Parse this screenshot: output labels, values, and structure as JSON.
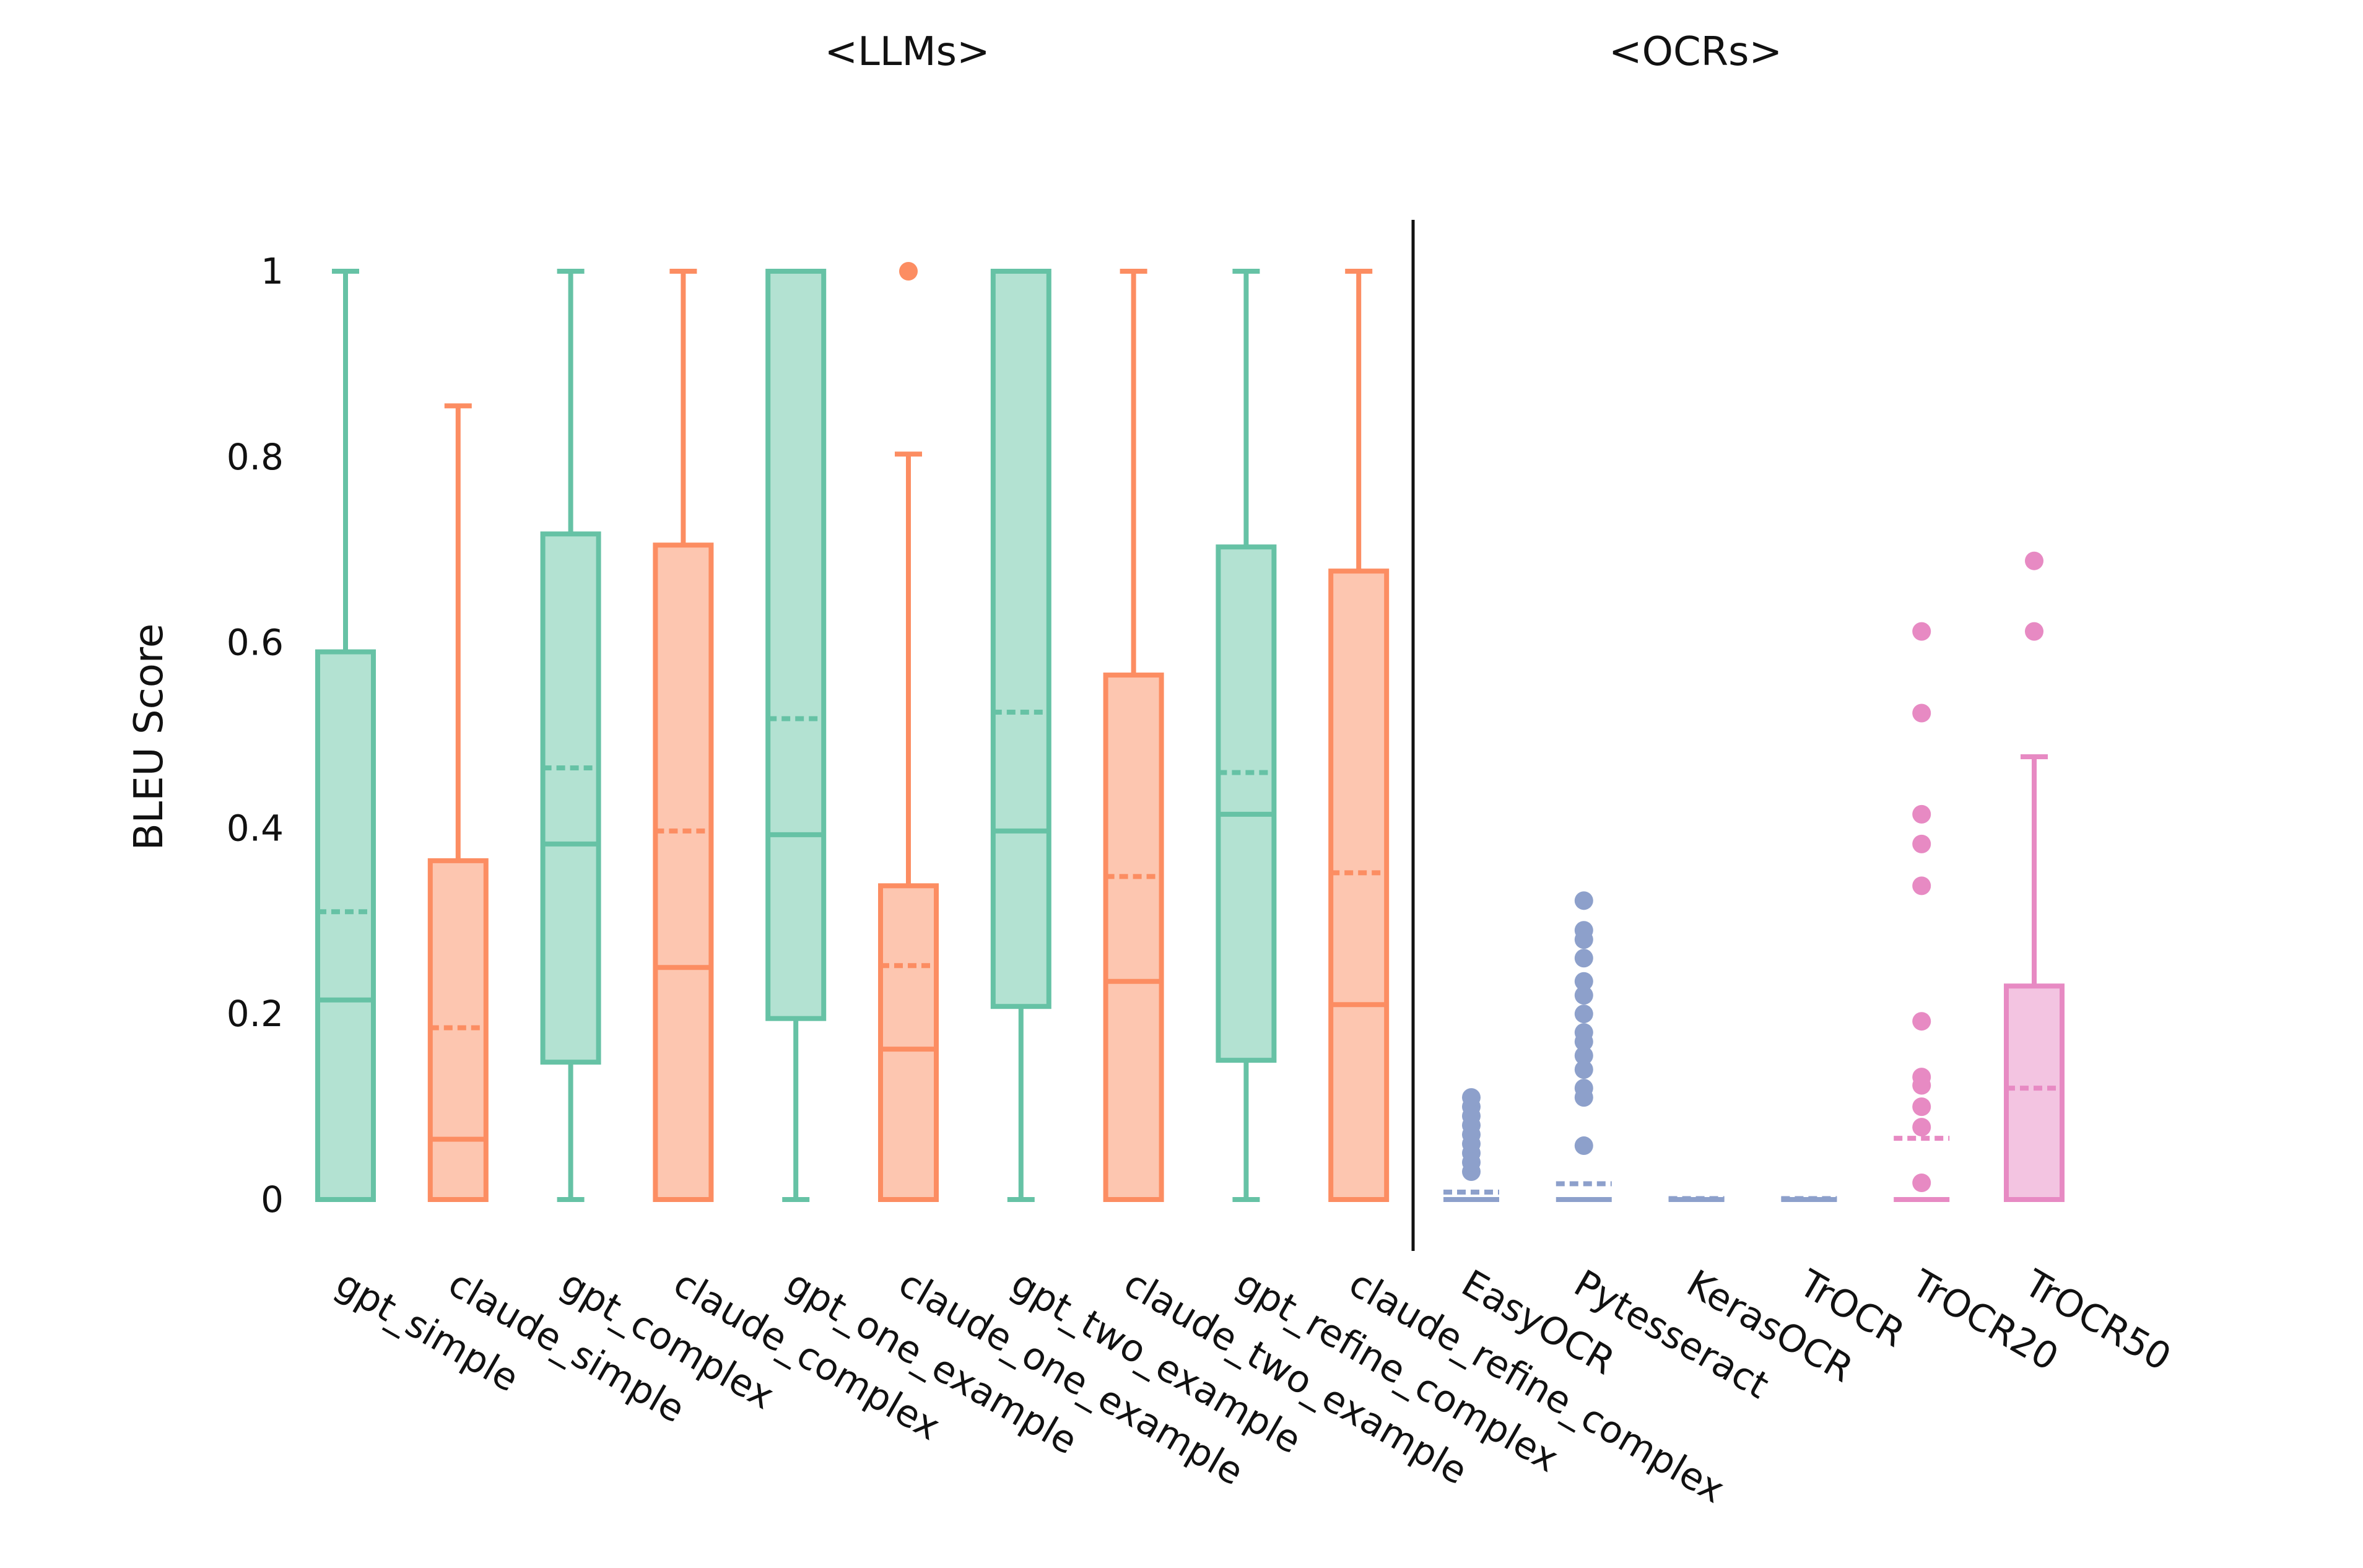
{
  "chart_data": {
    "type": "box",
    "ylabel": "BLEU Score",
    "ylim": [
      0,
      1
    ],
    "yticks": [
      "0",
      "0.2",
      "0.4",
      "0.6",
      "0.8",
      "1"
    ],
    "group_labels": [
      "<LLMs>",
      "<OCRs>"
    ],
    "colors": {
      "green": "#66c2a5",
      "orange": "#fc8d62",
      "blue": "#8da0cb",
      "pink": "#e78ac3"
    },
    "series": [
      {
        "name": "gpt_simple",
        "color": "green",
        "whislo": 0,
        "q1": 0,
        "median": 0.215,
        "mean": 0.31,
        "q3": 0.59,
        "whishi": 1.0,
        "fliers": []
      },
      {
        "name": "claude_simple",
        "color": "orange",
        "whislo": 0,
        "q1": 0,
        "median": 0.065,
        "mean": 0.185,
        "q3": 0.365,
        "whishi": 0.855,
        "fliers": []
      },
      {
        "name": "gpt_complex",
        "color": "green",
        "whislo": 0,
        "q1": 0.148,
        "median": 0.383,
        "mean": 0.465,
        "q3": 0.717,
        "whishi": 1.0,
        "fliers": []
      },
      {
        "name": "claude_complex",
        "color": "orange",
        "whislo": 0,
        "q1": 0,
        "median": 0.25,
        "mean": 0.397,
        "q3": 0.705,
        "whishi": 1.0,
        "fliers": []
      },
      {
        "name": "gpt_one_example",
        "color": "green",
        "whislo": 0,
        "q1": 0.195,
        "median": 0.393,
        "mean": 0.518,
        "q3": 1.0,
        "whishi": 1.0,
        "fliers": []
      },
      {
        "name": "claude_one_example",
        "color": "orange",
        "whislo": 0,
        "q1": 0,
        "median": 0.162,
        "mean": 0.252,
        "q3": 0.338,
        "whishi": 0.803,
        "fliers": [
          1.0
        ]
      },
      {
        "name": "gpt_two_example",
        "color": "green",
        "whislo": 0,
        "q1": 0.208,
        "median": 0.397,
        "mean": 0.525,
        "q3": 1.0,
        "whishi": 1.0,
        "fliers": []
      },
      {
        "name": "claude_two_example",
        "color": "orange",
        "whislo": 0,
        "q1": 0,
        "median": 0.235,
        "mean": 0.348,
        "q3": 0.565,
        "whishi": 1.0,
        "fliers": []
      },
      {
        "name": "gpt_refine_complex",
        "color": "green",
        "whislo": 0,
        "q1": 0.15,
        "median": 0.415,
        "mean": 0.46,
        "q3": 0.703,
        "whishi": 1.0,
        "fliers": []
      },
      {
        "name": "claude_refine_complex",
        "color": "orange",
        "whislo": 0,
        "q1": 0,
        "median": 0.21,
        "mean": 0.352,
        "q3": 0.677,
        "whishi": 1.0,
        "fliers": []
      },
      {
        "name": "EasyOCR",
        "color": "blue",
        "whislo": 0,
        "q1": 0,
        "median": 0,
        "mean": 0.008,
        "q3": 0,
        "whishi": 0,
        "fliers": [
          0.03,
          0.04,
          0.05,
          0.06,
          0.07,
          0.08,
          0.09,
          0.1,
          0.11
        ]
      },
      {
        "name": "Pytesseract",
        "color": "blue",
        "whislo": 0,
        "q1": 0,
        "median": 0,
        "mean": 0.017,
        "q3": 0,
        "whishi": 0,
        "fliers": [
          0.058,
          0.11,
          0.12,
          0.14,
          0.155,
          0.17,
          0.18,
          0.2,
          0.22,
          0.235,
          0.26,
          0.28,
          0.29,
          0.322
        ]
      },
      {
        "name": "KerasOCR",
        "color": "blue",
        "whislo": 0,
        "q1": 0,
        "median": 0,
        "mean": 0.001,
        "q3": 0,
        "whishi": 0,
        "fliers": []
      },
      {
        "name": "TrOCR",
        "color": "blue",
        "whislo": 0,
        "q1": 0,
        "median": 0,
        "mean": 0.001,
        "q3": 0,
        "whishi": 0,
        "fliers": []
      },
      {
        "name": "TrOCR20",
        "color": "pink",
        "whislo": 0,
        "q1": 0,
        "median": 0,
        "mean": 0.066,
        "q3": 0,
        "whishi": 0,
        "fliers": [
          0.018,
          0.078,
          0.1,
          0.123,
          0.132,
          0.192,
          0.338,
          0.383,
          0.415,
          0.524,
          0.612
        ]
      },
      {
        "name": "TrOCR50",
        "color": "pink",
        "whislo": 0,
        "q1": 0,
        "median": 0,
        "mean": 0.12,
        "q3": 0.23,
        "whishi": 0.477,
        "fliers": [
          0.612,
          0.688
        ]
      }
    ]
  }
}
